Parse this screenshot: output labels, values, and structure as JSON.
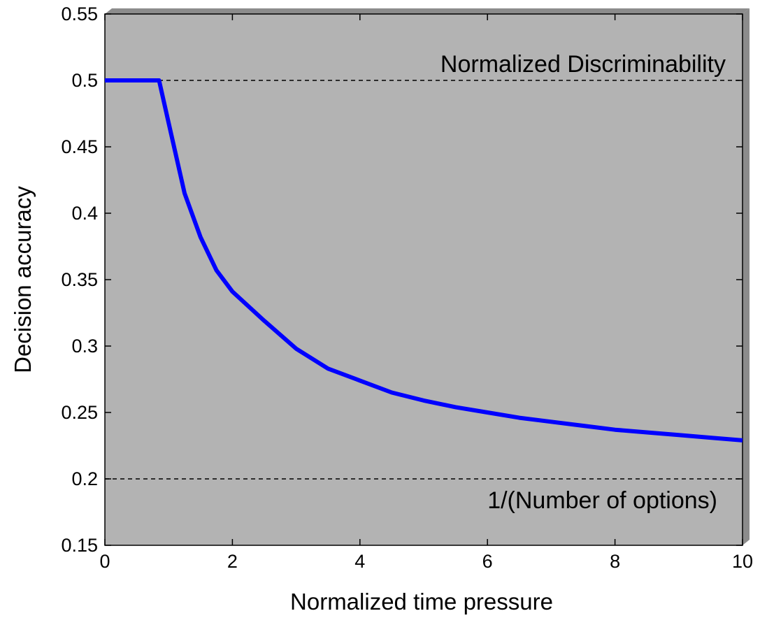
{
  "chart_data": {
    "type": "line",
    "title": "",
    "xlabel": "Normalized time pressure",
    "ylabel": "Decision accuracy",
    "xlim": [
      0,
      10
    ],
    "ylim": [
      0.15,
      0.55
    ],
    "x_ticks": [
      0,
      2,
      4,
      6,
      8,
      10
    ],
    "x_tick_labels": [
      "0",
      "2",
      "4",
      "6",
      "8",
      "10"
    ],
    "y_ticks": [
      0.15,
      0.2,
      0.25,
      0.3,
      0.35,
      0.4,
      0.45,
      0.5,
      0.55
    ],
    "y_tick_labels": [
      "0.15",
      "0.2",
      "0.25",
      "0.3",
      "0.35",
      "0.4",
      "0.45",
      "0.5",
      "0.55"
    ],
    "grid": false,
    "background_color": "#b3b3b3",
    "series": [
      {
        "color": "#0000ff",
        "x": [
          0,
          0.85,
          1.0,
          1.25,
          1.5,
          1.75,
          2.0,
          2.5,
          3.0,
          3.5,
          4.0,
          4.5,
          5.0,
          5.5,
          6.0,
          6.5,
          7.0,
          7.5,
          8.0,
          8.5,
          9.0,
          9.5,
          10.0
        ],
        "y": [
          0.5,
          0.5,
          0.468,
          0.415,
          0.382,
          0.357,
          0.341,
          0.319,
          0.298,
          0.283,
          0.274,
          0.265,
          0.259,
          0.254,
          0.25,
          0.246,
          0.243,
          0.24,
          0.237,
          0.235,
          0.233,
          0.231,
          0.229
        ]
      }
    ],
    "reference_lines": [
      {
        "y": 0.5,
        "style": "dashed",
        "color": "#000000"
      },
      {
        "y": 0.2,
        "style": "dashed",
        "color": "#000000"
      }
    ],
    "annotations": [
      {
        "text": "Normalized Discriminability",
        "x": 10,
        "y": 0.5,
        "position": "above-right"
      },
      {
        "text": "1/(Number of options)",
        "x": 10,
        "y": 0.2,
        "position": "below-right"
      }
    ]
  }
}
